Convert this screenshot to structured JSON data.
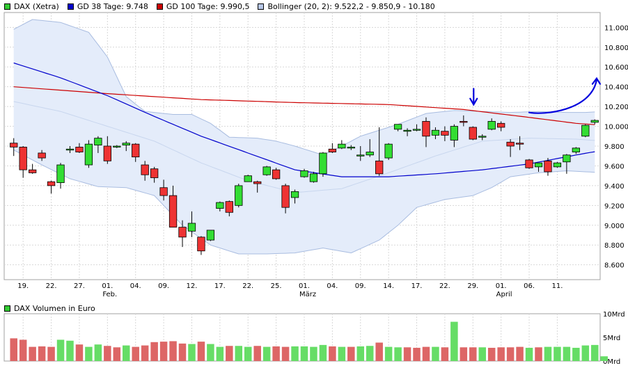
{
  "legend": [
    {
      "label": "DAX (Xetra)",
      "color": "#33cc33"
    },
    {
      "label": "GD 38 Tage: 9.748",
      "color": "#0000cc"
    },
    {
      "label": "GD 100 Tage: 9.990,5",
      "color": "#cc0000"
    },
    {
      "label": "Bollinger (20, 2): 9.522,2 - 9.850,9 - 10.180",
      "color": "#b8c8e8"
    }
  ],
  "volume_legend": {
    "label": "DAX Volumen in Euro",
    "color": "#33cc33"
  },
  "chart_data": [
    {
      "type": "candlestick",
      "title": "DAX (Xetra)",
      "ylim": [
        8450,
        11150
      ],
      "y_ticks": [
        "8.600",
        "8.800",
        "9.000",
        "9.200",
        "9.400",
        "9.600",
        "9.800",
        "10.000",
        "10.200",
        "10.400",
        "10.600",
        "10.800",
        "11.000"
      ],
      "x_ticks": [
        "19.",
        "22.",
        "27.",
        "01.",
        "04.",
        "09.",
        "12.",
        "17.",
        "22.",
        "25.",
        "01.",
        "04.",
        "09.",
        "14.",
        "17.",
        "22.",
        "29.",
        "01.",
        "06.",
        "11."
      ],
      "month_labels": [
        "Feb.",
        "März",
        "April"
      ],
      "candles": [
        {
          "o": 9830,
          "h": 9880,
          "l": 9700,
          "c": 9790
        },
        {
          "o": 9790,
          "h": 9800,
          "l": 9480,
          "c": 9560
        },
        {
          "o": 9560,
          "h": 9620,
          "l": 9520,
          "c": 9530
        },
        {
          "o": 9730,
          "h": 9760,
          "l": 9650,
          "c": 9680
        },
        {
          "o": 9440,
          "h": 9450,
          "l": 9320,
          "c": 9400
        },
        {
          "o": 9430,
          "h": 9630,
          "l": 9370,
          "c": 9610
        },
        {
          "o": 9770,
          "h": 9800,
          "l": 9730,
          "c": 9770
        },
        {
          "o": 9790,
          "h": 9830,
          "l": 9730,
          "c": 9740
        },
        {
          "o": 9610,
          "h": 9860,
          "l": 9580,
          "c": 9820
        },
        {
          "o": 9810,
          "h": 9900,
          "l": 9730,
          "c": 9880
        },
        {
          "o": 9800,
          "h": 9900,
          "l": 9620,
          "c": 9650
        },
        {
          "o": 9800,
          "h": 9810,
          "l": 9780,
          "c": 9800
        },
        {
          "o": 9810,
          "h": 9850,
          "l": 9750,
          "c": 9830
        },
        {
          "o": 9820,
          "h": 9830,
          "l": 9640,
          "c": 9690
        },
        {
          "o": 9610,
          "h": 9650,
          "l": 9450,
          "c": 9510
        },
        {
          "o": 9570,
          "h": 9590,
          "l": 9430,
          "c": 9480
        },
        {
          "o": 9380,
          "h": 9460,
          "l": 9250,
          "c": 9300
        },
        {
          "o": 9300,
          "h": 9400,
          "l": 8980,
          "c": 8980
        },
        {
          "o": 8980,
          "h": 9050,
          "l": 8780,
          "c": 8880
        },
        {
          "o": 8940,
          "h": 9140,
          "l": 8880,
          "c": 9020
        },
        {
          "o": 8880,
          "h": 8890,
          "l": 8700,
          "c": 8740
        },
        {
          "o": 8850,
          "h": 8950,
          "l": 8840,
          "c": 8950
        },
        {
          "o": 9170,
          "h": 9240,
          "l": 9140,
          "c": 9230
        },
        {
          "o": 9240,
          "h": 9250,
          "l": 9090,
          "c": 9130
        },
        {
          "o": 9200,
          "h": 9420,
          "l": 9180,
          "c": 9400
        },
        {
          "o": 9440,
          "h": 9510,
          "l": 9440,
          "c": 9500
        },
        {
          "o": 9440,
          "h": 9450,
          "l": 9330,
          "c": 9420
        },
        {
          "o": 9510,
          "h": 9600,
          "l": 9500,
          "c": 9590
        },
        {
          "o": 9560,
          "h": 9580,
          "l": 9460,
          "c": 9470
        },
        {
          "o": 9400,
          "h": 9420,
          "l": 9120,
          "c": 9180
        },
        {
          "o": 9280,
          "h": 9360,
          "l": 9220,
          "c": 9340
        },
        {
          "o": 9490,
          "h": 9570,
          "l": 9480,
          "c": 9550
        },
        {
          "o": 9440,
          "h": 9540,
          "l": 9430,
          "c": 9520
        },
        {
          "o": 9520,
          "h": 9740,
          "l": 9490,
          "c": 9730
        },
        {
          "o": 9770,
          "h": 9830,
          "l": 9730,
          "c": 9740
        },
        {
          "o": 9780,
          "h": 9860,
          "l": 9770,
          "c": 9820
        },
        {
          "o": 9780,
          "h": 9810,
          "l": 9760,
          "c": 9790
        },
        {
          "o": 9700,
          "h": 9800,
          "l": 9650,
          "c": 9710
        },
        {
          "o": 9710,
          "h": 9870,
          "l": 9690,
          "c": 9740
        },
        {
          "o": 9650,
          "h": 9990,
          "l": 9500,
          "c": 9520
        },
        {
          "o": 9680,
          "h": 9830,
          "l": 9660,
          "c": 9820
        },
        {
          "o": 9970,
          "h": 10020,
          "l": 9950,
          "c": 10020
        },
        {
          "o": 9950,
          "h": 9980,
          "l": 9900,
          "c": 9960
        },
        {
          "o": 9970,
          "h": 10020,
          "l": 9950,
          "c": 9970
        },
        {
          "o": 10050,
          "h": 10090,
          "l": 9790,
          "c": 9900
        },
        {
          "o": 9910,
          "h": 9990,
          "l": 9870,
          "c": 9960
        },
        {
          "o": 9950,
          "h": 10000,
          "l": 9850,
          "c": 9910
        },
        {
          "o": 9860,
          "h": 10020,
          "l": 9790,
          "c": 10000
        },
        {
          "o": 10050,
          "h": 10110,
          "l": 10000,
          "c": 10040
        },
        {
          "o": 9990,
          "h": 10000,
          "l": 9860,
          "c": 9870
        },
        {
          "o": 9890,
          "h": 9920,
          "l": 9860,
          "c": 9900
        },
        {
          "o": 9970,
          "h": 10080,
          "l": 9960,
          "c": 10050
        },
        {
          "o": 10030,
          "h": 10050,
          "l": 9950,
          "c": 9990
        },
        {
          "o": 9840,
          "h": 9870,
          "l": 9690,
          "c": 9800
        },
        {
          "o": 9830,
          "h": 9900,
          "l": 9760,
          "c": 9820
        },
        {
          "o": 9660,
          "h": 9670,
          "l": 9570,
          "c": 9580
        },
        {
          "o": 9590,
          "h": 9630,
          "l": 9540,
          "c": 9630
        },
        {
          "o": 9650,
          "h": 9680,
          "l": 9500,
          "c": 9540
        },
        {
          "o": 9590,
          "h": 9640,
          "l": 9580,
          "c": 9630
        },
        {
          "o": 9640,
          "h": 9720,
          "l": 9520,
          "c": 9710
        },
        {
          "o": 9740,
          "h": 9790,
          "l": 9720,
          "c": 9780
        },
        {
          "o": 9900,
          "h": 10020,
          "l": 9890,
          "c": 10010
        },
        {
          "o": 10040,
          "h": 10070,
          "l": 10020,
          "c": 10060
        }
      ],
      "gd38": [
        {
          "x": 0,
          "y": 10640
        },
        {
          "x": 5,
          "y": 10490
        },
        {
          "x": 10,
          "y": 10310
        },
        {
          "x": 15,
          "y": 10100
        },
        {
          "x": 20,
          "y": 9900
        },
        {
          "x": 25,
          "y": 9730
        },
        {
          "x": 30,
          "y": 9560
        },
        {
          "x": 35,
          "y": 9490
        },
        {
          "x": 40,
          "y": 9490
        },
        {
          "x": 45,
          "y": 9520
        },
        {
          "x": 50,
          "y": 9560
        },
        {
          "x": 55,
          "y": 9620
        },
        {
          "x": 60,
          "y": 9710
        },
        {
          "x": 63,
          "y": 9760
        }
      ],
      "gd100": [
        {
          "x": 0,
          "y": 10400
        },
        {
          "x": 10,
          "y": 10330
        },
        {
          "x": 20,
          "y": 10270
        },
        {
          "x": 30,
          "y": 10240
        },
        {
          "x": 40,
          "y": 10220
        },
        {
          "x": 48,
          "y": 10170
        },
        {
          "x": 55,
          "y": 10090
        },
        {
          "x": 60,
          "y": 10030
        },
        {
          "x": 63,
          "y": 10010
        }
      ],
      "bollinger": {
        "upper": [
          {
            "x": 0,
            "y": 10980
          },
          {
            "x": 2,
            "y": 11080
          },
          {
            "x": 5,
            "y": 11050
          },
          {
            "x": 8,
            "y": 10950
          },
          {
            "x": 10,
            "y": 10700
          },
          {
            "x": 12,
            "y": 10300
          },
          {
            "x": 14,
            "y": 10150
          },
          {
            "x": 17,
            "y": 10120
          },
          {
            "x": 19,
            "y": 10120
          },
          {
            "x": 21,
            "y": 10030
          },
          {
            "x": 23,
            "y": 9890
          },
          {
            "x": 26,
            "y": 9880
          },
          {
            "x": 28,
            "y": 9850
          },
          {
            "x": 30,
            "y": 9800
          },
          {
            "x": 33,
            "y": 9710
          },
          {
            "x": 35,
            "y": 9800
          },
          {
            "x": 37,
            "y": 9900
          },
          {
            "x": 39,
            "y": 9960
          },
          {
            "x": 41,
            "y": 10020
          },
          {
            "x": 44,
            "y": 10130
          },
          {
            "x": 47,
            "y": 10160
          },
          {
            "x": 50,
            "y": 10150
          },
          {
            "x": 53,
            "y": 10140
          },
          {
            "x": 56,
            "y": 10150
          },
          {
            "x": 59,
            "y": 10140
          },
          {
            "x": 61,
            "y": 10140
          },
          {
            "x": 63,
            "y": 10150
          }
        ],
        "middle": [
          {
            "x": 0,
            "y": 10250
          },
          {
            "x": 5,
            "y": 10150
          },
          {
            "x": 10,
            "y": 10000
          },
          {
            "x": 15,
            "y": 9850
          },
          {
            "x": 20,
            "y": 9630
          },
          {
            "x": 25,
            "y": 9450
          },
          {
            "x": 30,
            "y": 9330
          },
          {
            "x": 35,
            "y": 9370
          },
          {
            "x": 40,
            "y": 9530
          },
          {
            "x": 45,
            "y": 9700
          },
          {
            "x": 50,
            "y": 9850
          },
          {
            "x": 55,
            "y": 9880
          },
          {
            "x": 60,
            "y": 9870
          },
          {
            "x": 63,
            "y": 9850
          }
        ],
        "lower": [
          {
            "x": 0,
            "y": 9760
          },
          {
            "x": 3,
            "y": 9610
          },
          {
            "x": 6,
            "y": 9470
          },
          {
            "x": 9,
            "y": 9390
          },
          {
            "x": 12,
            "y": 9380
          },
          {
            "x": 15,
            "y": 9300
          },
          {
            "x": 18,
            "y": 9000
          },
          {
            "x": 21,
            "y": 8800
          },
          {
            "x": 24,
            "y": 8710
          },
          {
            "x": 27,
            "y": 8710
          },
          {
            "x": 30,
            "y": 8720
          },
          {
            "x": 33,
            "y": 8770
          },
          {
            "x": 36,
            "y": 8720
          },
          {
            "x": 39,
            "y": 8850
          },
          {
            "x": 41,
            "y": 9000
          },
          {
            "x": 43,
            "y": 9180
          },
          {
            "x": 46,
            "y": 9260
          },
          {
            "x": 49,
            "y": 9300
          },
          {
            "x": 51,
            "y": 9380
          },
          {
            "x": 53,
            "y": 9490
          },
          {
            "x": 56,
            "y": 9530
          },
          {
            "x": 59,
            "y": 9550
          },
          {
            "x": 61,
            "y": 9540
          },
          {
            "x": 63,
            "y": 9530
          }
        ]
      },
      "annotations": [
        "down-arrow",
        "up-arrow"
      ]
    },
    {
      "type": "bar",
      "title": "DAX Volumen in Euro",
      "y_ticks": [
        "10Mrd",
        "5Mrd",
        "0Mrd"
      ],
      "ylim": [
        0,
        10
      ],
      "values": [
        4.8,
        4.5,
        3.0,
        3.1,
        3.0,
        4.5,
        4.3,
        3.5,
        3.0,
        3.5,
        3.2,
        2.9,
        3.3,
        3.0,
        3.3,
        4.0,
        4.1,
        4.2,
        3.7,
        3.6,
        4.1,
        3.6,
        3.0,
        3.2,
        3.2,
        3.0,
        3.2,
        3.0,
        3.1,
        3.0,
        3.1,
        3.1,
        3.0,
        3.4,
        3.1,
        3.0,
        3.0,
        3.1,
        3.2,
        3.9,
        3.0,
        2.9,
        2.9,
        2.8,
        3.0,
        3.0,
        2.9,
        8.3,
        2.9,
        2.9,
        2.9,
        2.8,
        2.9,
        2.9,
        3.0,
        2.8,
        2.9,
        3.0,
        3.0,
        3.0,
        2.8,
        3.3,
        3.4,
        1.0
      ],
      "up": [
        false,
        false,
        false,
        false,
        false,
        true,
        true,
        false,
        true,
        true,
        false,
        false,
        true,
        false,
        false,
        false,
        false,
        false,
        false,
        true,
        false,
        true,
        true,
        false,
        true,
        true,
        false,
        true,
        false,
        false,
        true,
        true,
        true,
        true,
        false,
        true,
        false,
        true,
        true,
        false,
        true,
        true,
        false,
        false,
        false,
        true,
        false,
        true,
        false,
        false,
        true,
        false,
        false,
        false,
        false,
        true,
        false,
        true,
        true,
        true,
        true,
        true,
        true,
        true
      ]
    }
  ]
}
